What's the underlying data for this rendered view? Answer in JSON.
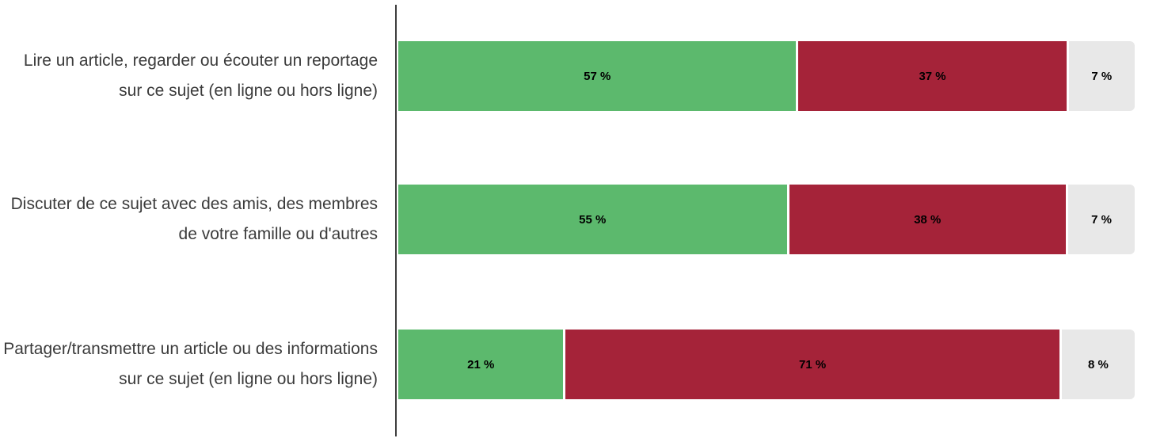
{
  "chart_data": {
    "type": "bar",
    "stacked": true,
    "orientation": "horizontal",
    "title": "",
    "xlabel": "",
    "ylabel": "",
    "xlim": [
      0,
      100
    ],
    "unit": "%",
    "grid": false,
    "legend": "none",
    "categories": [
      "Lire un article, regarder ou écouter un reportage sur ce sujet (en ligne ou hors ligne)",
      "Discuter de ce sujet avec des amis, des membres de votre famille ou d'autres",
      "Partager/transmettre un article ou des informations sur ce sujet (en ligne ou hors ligne)"
    ],
    "series": [
      {
        "name": "segment-vert",
        "color": "#5cb96d",
        "values": [
          57,
          55,
          21
        ]
      },
      {
        "name": "segment-rouge",
        "color": "#a52339",
        "values": [
          37,
          38,
          71
        ]
      },
      {
        "name": "segment-gris",
        "color": "#e8e8e8",
        "values": [
          7,
          7,
          8
        ]
      }
    ],
    "value_labels": [
      [
        "57 %",
        "37 %",
        "7 %"
      ],
      [
        "55 %",
        "38 %",
        "7 %"
      ],
      [
        "21 %",
        "71 %",
        "8 %"
      ]
    ]
  },
  "colors": {
    "axis_line": "#3d3d3d",
    "label_text": "#3b3b3b",
    "value_text": "#000000",
    "background": "#ffffff"
  }
}
